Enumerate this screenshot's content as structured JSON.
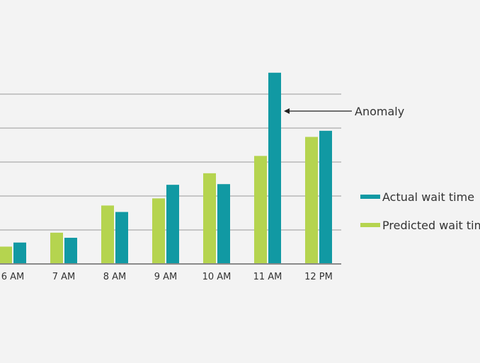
{
  "chart_data": {
    "type": "bar",
    "categories": [
      "6 AM",
      "7 AM",
      "8 AM",
      "9 AM",
      "10 AM",
      "11 AM",
      "12 PM"
    ],
    "series": [
      {
        "name": "Predicted wait time",
        "color": "#b5d44f",
        "values": [
          5.1,
          9.2,
          17.2,
          19.3,
          26.7,
          31.8,
          37.4
        ]
      },
      {
        "name": "Actual wait time",
        "color": "#1199a3",
        "values": [
          6.3,
          7.7,
          15.3,
          23.3,
          23.5,
          56.3,
          39.2
        ]
      }
    ],
    "ylim": [
      0,
      60
    ],
    "yticks": [
      10,
      20,
      30,
      40,
      50
    ],
    "grid": true,
    "legend": "right",
    "annotation": {
      "text": "Anomaly",
      "category": "11 AM",
      "series": "Actual wait time",
      "value": 45
    }
  }
}
